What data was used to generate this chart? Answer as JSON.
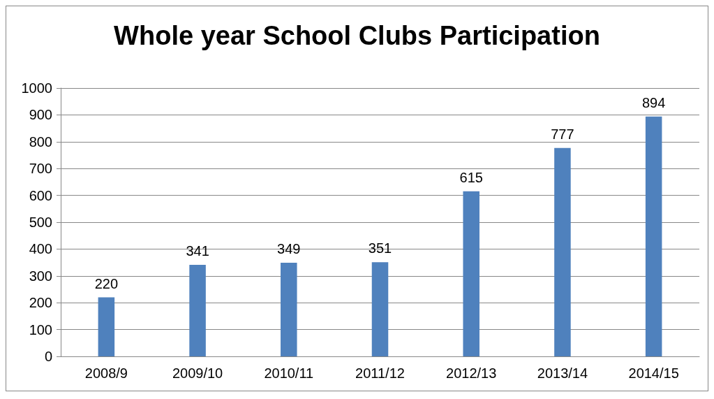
{
  "chart_data": {
    "type": "bar",
    "title": "Whole year School Clubs Participation",
    "categories": [
      "2008/9",
      "2009/10",
      "2010/11",
      "2011/12",
      "2012/13",
      "2013/14",
      "2014/15"
    ],
    "values": [
      220,
      341,
      349,
      351,
      615,
      777,
      894
    ],
    "color": "#4f81bd",
    "ylim": [
      0,
      1000
    ],
    "yticks": [
      0,
      100,
      200,
      300,
      400,
      500,
      600,
      700,
      800,
      900,
      1000
    ],
    "grid": "y",
    "data_labels": true
  }
}
